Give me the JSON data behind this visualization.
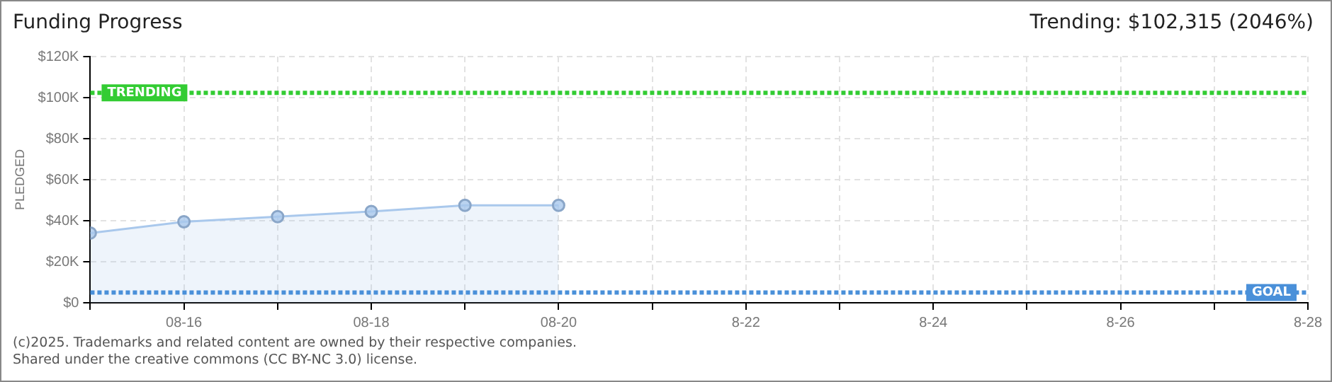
{
  "chart_data": {
    "type": "area",
    "title": "Funding Progress",
    "ylabel": "PLEDGED",
    "annotations": [
      "Trending: $102,315 (2046%)",
      "(c)2025. Trademarks and related content are owned by their respective companies.",
      "Shared under the creative commons (CC BY-NC 3.0) license."
    ],
    "x": [
      "--08-15",
      "--08-16",
      "--08-17",
      "--08-18",
      "--08-19",
      "--08-20"
    ],
    "series": [
      {
        "color": "#a9c8ec",
        "values": [
          34000,
          39500,
          42000,
          44500,
          47500,
          47500
        ]
      }
    ],
    "xlim": [
      "--08-15",
      "--08-28"
    ],
    "xticks": [
      {
        "value": "--08-15",
        "label": null
      },
      {
        "value": "--08-16",
        "label": "08-16"
      },
      {
        "value": "--08-17",
        "label": null
      },
      {
        "value": "--08-18",
        "label": "08-18"
      },
      {
        "value": "--08-19",
        "label": null
      },
      {
        "value": "--08-20",
        "label": "08-20"
      },
      {
        "value": "--08-21",
        "label": null
      },
      {
        "value": "--08-22",
        "label": "8-22"
      },
      {
        "value": "--08-23",
        "label": null
      },
      {
        "value": "--08-24",
        "label": "8-24"
      },
      {
        "value": "--08-25",
        "label": null
      },
      {
        "value": "--08-26",
        "label": "8-26"
      },
      {
        "value": "--08-27",
        "label": null
      },
      {
        "value": "--08-28",
        "label": "8-28"
      }
    ],
    "ylim": [
      0,
      120000
    ],
    "yticks": [
      {
        "value": 0,
        "label": "$0"
      },
      {
        "value": 20000,
        "label": "$20K"
      },
      {
        "value": 40000,
        "label": "$40K"
      },
      {
        "value": 60000,
        "label": "$60K"
      },
      {
        "value": 80000,
        "label": "$80K"
      },
      {
        "value": 100000,
        "label": "$100K"
      },
      {
        "value": 120000,
        "label": "$120K"
      }
    ],
    "ref_lines": [
      {
        "axis": "y",
        "value": 102315,
        "label": "TRENDING",
        "color": "#33cc33",
        "line_style": "dotted"
      },
      {
        "axis": "y",
        "value": 5000,
        "label": "GOAL",
        "color": "#4a90d9",
        "line_style": "dotted"
      }
    ],
    "grid": true,
    "marker": "circle",
    "legend": false
  }
}
